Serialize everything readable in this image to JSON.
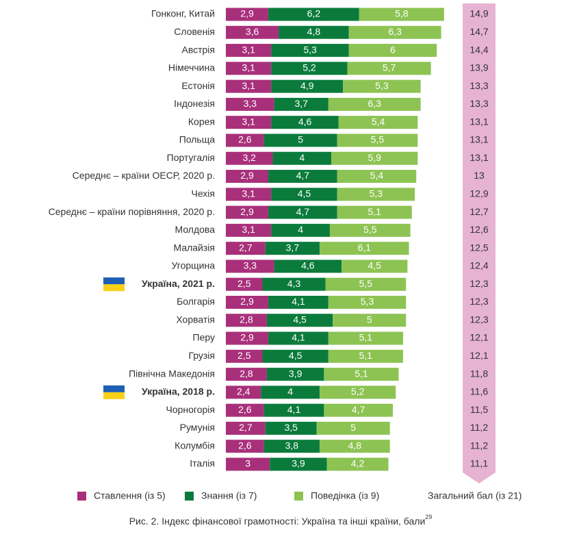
{
  "chart_data": {
    "type": "stacked-bar",
    "categories": [
      "Гонконг, Китай",
      "Словенія",
      "Австрія",
      "Німеччина",
      "Естонія",
      "Індонезія",
      "Корея",
      "Польща",
      "Португалія",
      "Середнє – країни ОЕСР, 2020 р.",
      "Чехія",
      "Середнє – країни порівняння, 2020 р.",
      "Молдова",
      "Малайзія",
      "Угорщина",
      "Україна, 2021 р.",
      "Болгарія",
      "Хорватія",
      "Перу",
      "Грузія",
      "Північна Македонія",
      "Україна, 2018 р.",
      "Чорногорія",
      "Румунія",
      "Колумбія",
      "Італія"
    ],
    "series": [
      {
        "name": "Ставлення (із 5)",
        "color": "#a8307a",
        "values": [
          2.9,
          3.6,
          3.1,
          3.1,
          3.1,
          3.3,
          3.1,
          2.6,
          3.2,
          2.9,
          3.1,
          2.9,
          3.1,
          2.7,
          3.3,
          2.5,
          2.9,
          2.8,
          2.9,
          2.5,
          2.8,
          2.4,
          2.6,
          2.7,
          2.6,
          3
        ],
        "value_labels": [
          "2,9",
          "3,6",
          "3,1",
          "3,1",
          "3,1",
          "3,3",
          "3,1",
          "2,6",
          "3,2",
          "2,9",
          "3,1",
          "2,9",
          "3,1",
          "2,7",
          "3,3",
          "2,5",
          "2,9",
          "2,8",
          "2,9",
          "2,5",
          "2,8",
          "2,4",
          "2,6",
          "2,7",
          "2,6",
          "3"
        ]
      },
      {
        "name": "Знання (із 7)",
        "color": "#0b7b3c",
        "values": [
          6.2,
          4.8,
          5.3,
          5.2,
          4.9,
          3.7,
          4.6,
          5,
          4,
          4.7,
          4.5,
          4.7,
          4,
          3.7,
          4.6,
          4.3,
          4.1,
          4.5,
          4.1,
          4.5,
          3.9,
          4,
          4.1,
          3.5,
          3.8,
          3.9
        ],
        "value_labels": [
          "6,2",
          "4,8",
          "5,3",
          "5,2",
          "4,9",
          "3,7",
          "4,6",
          "5",
          "4",
          "4,7",
          "4,5",
          "4,7",
          "4",
          "3,7",
          "4,6",
          "4,3",
          "4,1",
          "4,5",
          "4,1",
          "4,5",
          "3,9",
          "4",
          "4,1",
          "3,5",
          "3,8",
          "3,9"
        ]
      },
      {
        "name": "Поведінка (із 9)",
        "color": "#8dc353",
        "values": [
          5.8,
          6.3,
          6,
          5.7,
          5.3,
          6.3,
          5.4,
          5.5,
          5.9,
          5.4,
          5.3,
          5.1,
          5.5,
          6.1,
          4.5,
          5.5,
          5.3,
          5,
          5.1,
          5.1,
          5.1,
          5.2,
          4.7,
          5,
          4.8,
          4.2
        ],
        "value_labels": [
          "5,8",
          "6,3",
          "6",
          "5,7",
          "5,3",
          "6,3",
          "5,4",
          "5,5",
          "5,9",
          "5,4",
          "5,3",
          "5,1",
          "5,5",
          "6,1",
          "4,5",
          "5,5",
          "5,3",
          "5",
          "5,1",
          "5,1",
          "5,1",
          "5,2",
          "4,7",
          "5",
          "4,8",
          "4,2"
        ]
      }
    ],
    "totals": {
      "name": "Загальний бал (із 21)",
      "color": "#e6b3d3",
      "values": [
        14.9,
        14.7,
        14.4,
        13.9,
        13.3,
        13.3,
        13.1,
        13.1,
        13.1,
        13,
        12.9,
        12.7,
        12.6,
        12.5,
        12.4,
        12.3,
        12.3,
        12.3,
        12.1,
        12.1,
        11.8,
        11.6,
        11.5,
        11.2,
        11.2,
        11.1
      ],
      "value_labels": [
        "14,9",
        "14,7",
        "14,4",
        "13,9",
        "13,3",
        "13,3",
        "13,1",
        "13,1",
        "13,1",
        "13",
        "12,9",
        "12,7",
        "12,6",
        "12,5",
        "12,4",
        "12,3",
        "12,3",
        "12,3",
        "12,1",
        "12,1",
        "11,8",
        "11,6",
        "11,5",
        "11,2",
        "11,2",
        "11,1"
      ]
    },
    "caption": "Рис. 2. Індекс фінансової грамотності: Україна та інші країни, бали",
    "caption_sup": "29"
  }
}
